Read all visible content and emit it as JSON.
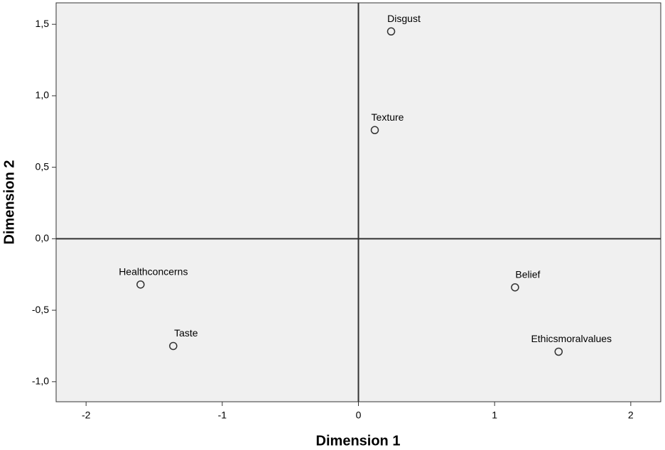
{
  "chart_data": {
    "type": "scatter",
    "x_label": "Dimension 1",
    "y_label": "Dimension 2",
    "labels": [
      "Disgust",
      "Texture",
      "Healthconcerns",
      "Taste",
      "Belief",
      "Ethicsmoralvalues"
    ],
    "x": [
      0.24,
      0.12,
      -1.6,
      -1.36,
      1.15,
      1.47
    ],
    "values": [
      1.45,
      0.76,
      -0.32,
      -0.75,
      -0.34,
      -0.79
    ],
    "color": "#333333",
    "xlim": [
      -2.22,
      2.22
    ],
    "ylim": [
      -1.14,
      1.65
    ],
    "xticks": [
      -2,
      -1,
      0,
      1,
      2
    ],
    "yticks": [
      {
        "value": -1.0,
        "label": "-1,0"
      },
      {
        "value": -0.5,
        "label": "-0,5"
      },
      {
        "value": 0.0,
        "label": "0,0"
      },
      {
        "value": 0.5,
        "label": "0,5"
      },
      {
        "value": 1.0,
        "label": "1,0"
      },
      {
        "value": 1.5,
        "label": "1,5"
      }
    ],
    "reference_lines": true
  }
}
